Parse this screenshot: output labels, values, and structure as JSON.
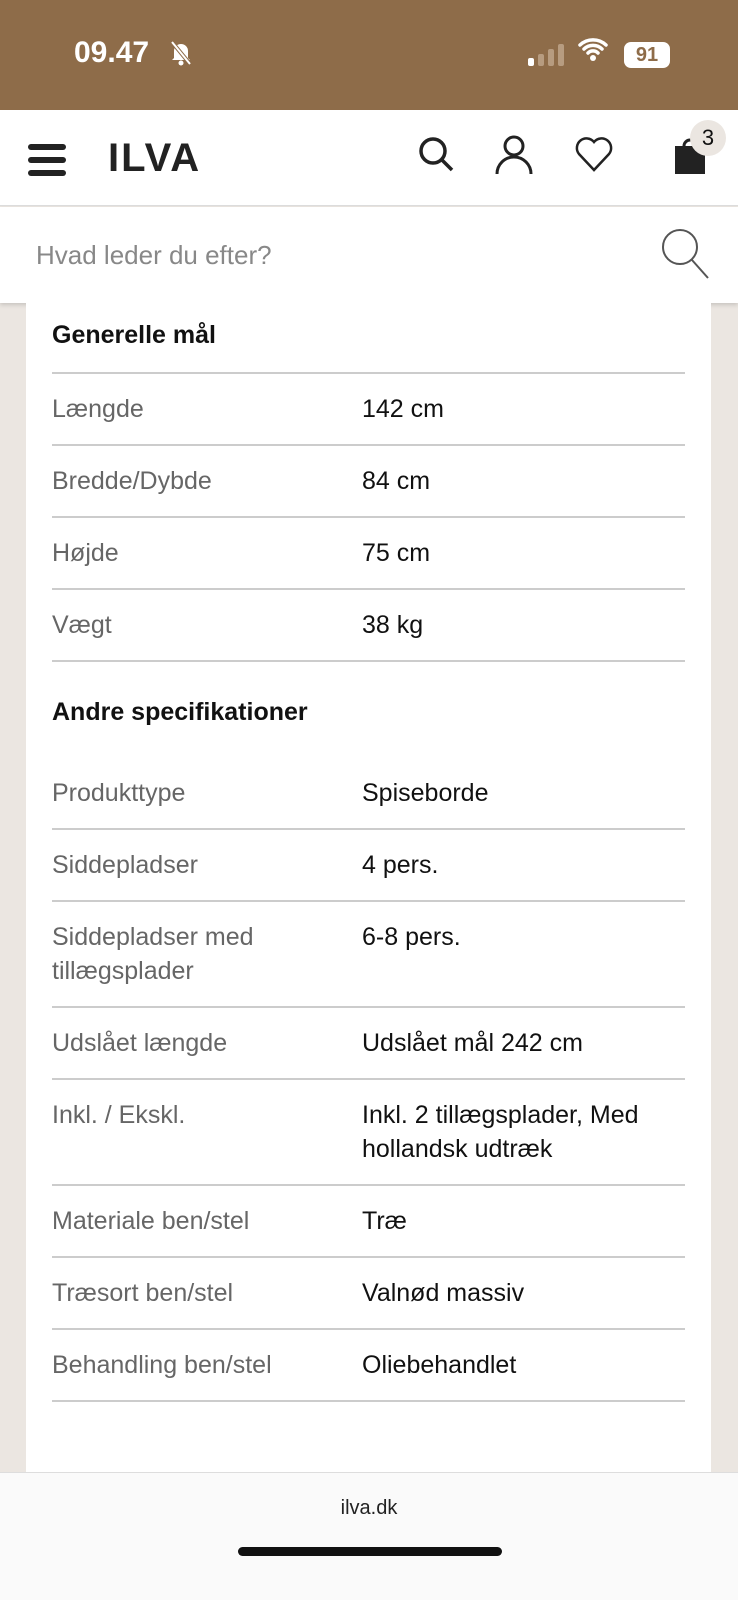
{
  "status": {
    "time": "09.47",
    "battery": "91"
  },
  "header": {
    "logo": "ILVA",
    "cart_count": "3"
  },
  "search": {
    "placeholder": "Hvad leder du efter?"
  },
  "sections": [
    {
      "title": "Generelle mål",
      "rows": [
        {
          "k": "Længde",
          "v": "142 cm"
        },
        {
          "k": "Bredde/Dybde",
          "v": "84 cm"
        },
        {
          "k": "Højde",
          "v": "75 cm"
        },
        {
          "k": "Vægt",
          "v": "38 kg"
        }
      ]
    },
    {
      "title": "Andre specifikationer",
      "rows": [
        {
          "k": "Produkttype",
          "v": "Spiseborde"
        },
        {
          "k": "Siddepladser",
          "v": "4 pers."
        },
        {
          "k": "Siddepladser med tillægsplader",
          "v": "6-8 pers."
        },
        {
          "k": "Udslået længde",
          "v": "Udslået mål 242 cm"
        },
        {
          "k": "Inkl. / Ekskl.",
          "v": "Inkl. 2 tillægsplader, Med hollandsk udtræk"
        },
        {
          "k": "Materiale ben/stel",
          "v": "Træ"
        },
        {
          "k": "Træsort ben/stel",
          "v": "Valnød massiv"
        },
        {
          "k": "Behandling ben/stel",
          "v": "Oliebehandlet"
        }
      ]
    }
  ],
  "browser": {
    "url": "ilva.dk"
  }
}
